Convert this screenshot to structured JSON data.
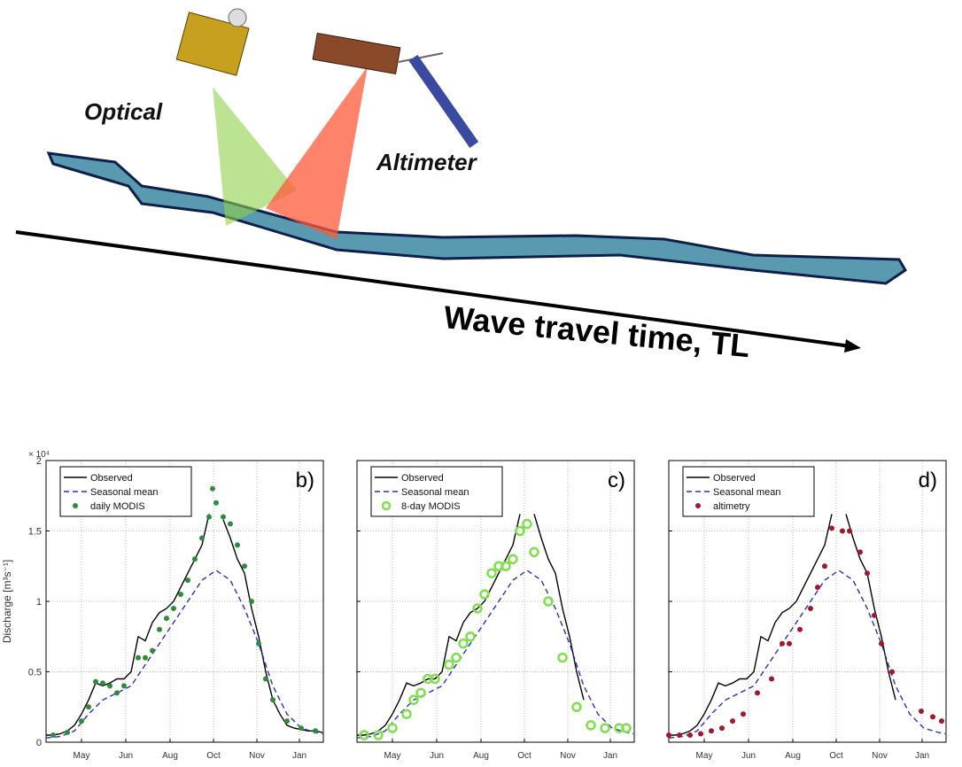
{
  "diagram": {
    "labels": {
      "optical": "Optical",
      "altimeter": "Altimeter",
      "wave": "Wave travel time, TL"
    }
  },
  "chart_data": [
    {
      "type": "line",
      "panel_label": "b)",
      "y_label": "Discharge [m³s⁻¹]",
      "y_multiplier": "× 10⁴",
      "show_ytick_labels": true,
      "xlim": [
        0,
        313
      ],
      "ylim": [
        0,
        2
      ],
      "yticks": [
        0,
        0.5,
        1,
        1.5,
        2
      ],
      "xticks": [
        {
          "value": 40,
          "label": "May"
        },
        {
          "value": 90,
          "label": "Jun"
        },
        {
          "value": 140,
          "label": "Aug"
        },
        {
          "value": 189,
          "label": "Oct"
        },
        {
          "value": 238,
          "label": "Nov"
        },
        {
          "value": 286,
          "label": "Jan"
        }
      ],
      "grid": true,
      "legend": "upper left",
      "series": [
        {
          "name": "Observed",
          "color": "#000000",
          "style": "solid",
          "x": [
            0,
            8,
            16,
            24,
            32,
            40,
            48,
            56,
            64,
            72,
            80,
            88,
            96,
            104,
            112,
            120,
            128,
            136,
            144,
            152,
            160,
            168,
            176,
            184,
            192,
            200,
            208,
            216,
            224,
            232,
            240,
            248,
            256,
            264,
            272,
            280,
            288,
            296,
            304,
            312
          ],
          "values": [
            0.05,
            0.05,
            0.06,
            0.08,
            0.12,
            0.2,
            0.3,
            0.42,
            0.4,
            0.42,
            0.45,
            0.45,
            0.5,
            0.75,
            0.72,
            0.85,
            0.92,
            0.95,
            1.0,
            1.1,
            1.2,
            1.3,
            1.4,
            1.62,
            null,
            1.58,
            1.45,
            1.3,
            1.2,
            0.95,
            0.75,
            0.5,
            0.3,
            0.2,
            0.12,
            0.1,
            0.09,
            0.08,
            0.08,
            0.07
          ]
        },
        {
          "name": "Seasonal mean",
          "color": "#2b2bd0",
          "style": "dashed",
          "x": [
            0,
            16,
            32,
            48,
            64,
            80,
            96,
            112,
            128,
            144,
            160,
            176,
            192,
            208,
            224,
            240,
            256,
            272,
            288,
            304,
            312
          ],
          "values": [
            0.03,
            0.04,
            0.08,
            0.2,
            0.3,
            0.35,
            0.4,
            0.55,
            0.7,
            0.85,
            1.0,
            1.15,
            1.22,
            1.15,
            0.95,
            0.7,
            0.4,
            0.2,
            0.1,
            0.07,
            0.06
          ]
        },
        {
          "name": "daily MODIS",
          "color": "#2e8b3a",
          "style": "points",
          "x": [
            8,
            24,
            40,
            48,
            56,
            64,
            72,
            80,
            88,
            104,
            112,
            120,
            128,
            136,
            144,
            152,
            160,
            168,
            176,
            184,
            188,
            192,
            200,
            208,
            216,
            224,
            232,
            240,
            248,
            256,
            272,
            288,
            304
          ],
          "values": [
            0.05,
            0.07,
            0.15,
            0.25,
            0.43,
            0.42,
            0.4,
            0.35,
            0.4,
            0.6,
            0.6,
            0.65,
            0.8,
            0.88,
            0.95,
            1.05,
            1.15,
            1.3,
            1.45,
            1.6,
            1.8,
            1.7,
            1.6,
            1.55,
            1.4,
            1.25,
            1.0,
            0.7,
            0.45,
            0.3,
            0.15,
            0.1,
            0.08
          ]
        }
      ]
    },
    {
      "type": "line",
      "panel_label": "c)",
      "show_ytick_labels": false,
      "xlim": [
        0,
        313
      ],
      "ylim": [
        0,
        2
      ],
      "yticks": [
        0,
        0.5,
        1,
        1.5,
        2
      ],
      "xticks": [
        {
          "value": 40,
          "label": "May"
        },
        {
          "value": 90,
          "label": "Jun"
        },
        {
          "value": 140,
          "label": "Aug"
        },
        {
          "value": 189,
          "label": "Oct"
        },
        {
          "value": 238,
          "label": "Nov"
        },
        {
          "value": 286,
          "label": "Jan"
        }
      ],
      "grid": true,
      "legend": "upper left",
      "series": [
        {
          "name": "Observed",
          "color": "#000000",
          "style": "solid",
          "x": [
            0,
            8,
            16,
            24,
            32,
            40,
            48,
            56,
            64,
            72,
            80,
            88,
            96,
            104,
            112,
            120,
            128,
            136,
            144,
            152,
            160,
            168,
            176,
            184,
            192,
            200,
            208,
            216,
            224,
            232,
            240,
            248,
            256
          ],
          "values": [
            0.05,
            0.05,
            0.06,
            0.08,
            0.12,
            0.2,
            0.3,
            0.42,
            0.4,
            0.42,
            0.45,
            0.45,
            0.5,
            0.75,
            0.72,
            0.85,
            0.92,
            0.95,
            1.0,
            1.1,
            1.2,
            1.3,
            1.4,
            1.62,
            null,
            1.62,
            1.45,
            1.3,
            1.2,
            0.95,
            0.75,
            0.5,
            0.3
          ]
        },
        {
          "name": "Seasonal mean",
          "color": "#2b2bd0",
          "style": "dashed",
          "x": [
            0,
            16,
            32,
            48,
            64,
            80,
            96,
            112,
            128,
            144,
            160,
            176,
            192,
            208,
            224,
            240,
            256,
            272,
            288,
            304,
            312
          ],
          "values": [
            0.03,
            0.04,
            0.08,
            0.2,
            0.3,
            0.35,
            0.4,
            0.55,
            0.7,
            0.85,
            1.0,
            1.15,
            1.22,
            1.15,
            0.95,
            0.7,
            0.4,
            0.2,
            0.1,
            0.07,
            0.06
          ]
        },
        {
          "name": "8-day MODIS",
          "color": "#7ee04a",
          "style": "circles",
          "x": [
            8,
            24,
            40,
            56,
            64,
            72,
            80,
            88,
            104,
            112,
            120,
            128,
            136,
            144,
            152,
            160,
            168,
            176,
            184,
            192,
            200,
            216,
            232,
            248,
            264,
            280,
            296,
            304
          ],
          "values": [
            0.05,
            0.05,
            0.1,
            0.2,
            0.3,
            0.35,
            0.45,
            0.45,
            0.55,
            0.6,
            0.7,
            0.75,
            0.95,
            1.05,
            1.2,
            1.25,
            1.25,
            1.3,
            1.5,
            1.55,
            1.35,
            1.0,
            0.6,
            0.25,
            0.12,
            0.1,
            0.1,
            0.1
          ]
        }
      ]
    },
    {
      "type": "line",
      "panel_label": "d)",
      "show_ytick_labels": false,
      "xlim": [
        0,
        313
      ],
      "ylim": [
        0,
        2
      ],
      "yticks": [
        0,
        0.5,
        1,
        1.5,
        2
      ],
      "xticks": [
        {
          "value": 40,
          "label": "May"
        },
        {
          "value": 90,
          "label": "Jun"
        },
        {
          "value": 140,
          "label": "Aug"
        },
        {
          "value": 189,
          "label": "Oct"
        },
        {
          "value": 238,
          "label": "Nov"
        },
        {
          "value": 286,
          "label": "Jan"
        }
      ],
      "grid": true,
      "legend": "upper left",
      "series": [
        {
          "name": "Observed",
          "color": "#000000",
          "style": "solid",
          "x": [
            0,
            8,
            16,
            24,
            32,
            40,
            48,
            56,
            64,
            72,
            80,
            88,
            96,
            104,
            112,
            120,
            128,
            136,
            144,
            152,
            160,
            168,
            176,
            184,
            192,
            200,
            208,
            216,
            224,
            232,
            240,
            248,
            256
          ],
          "values": [
            0.05,
            0.05,
            0.06,
            0.08,
            0.12,
            0.2,
            0.3,
            0.42,
            0.4,
            0.42,
            0.45,
            0.45,
            0.5,
            0.75,
            0.72,
            0.85,
            0.92,
            0.95,
            1.0,
            1.1,
            1.2,
            1.3,
            1.4,
            1.62,
            null,
            1.62,
            1.45,
            1.3,
            1.2,
            0.95,
            0.75,
            0.5,
            0.3
          ]
        },
        {
          "name": "Seasonal mean",
          "color": "#2b2bd0",
          "style": "dashed",
          "x": [
            0,
            16,
            32,
            48,
            64,
            80,
            96,
            112,
            128,
            144,
            160,
            176,
            192,
            208,
            224,
            240,
            256,
            272,
            288,
            304,
            312
          ],
          "values": [
            0.03,
            0.04,
            0.08,
            0.2,
            0.3,
            0.35,
            0.4,
            0.55,
            0.7,
            0.85,
            1.0,
            1.15,
            1.22,
            1.15,
            0.95,
            0.7,
            0.4,
            0.2,
            0.1,
            0.07,
            0.06
          ]
        },
        {
          "name": "altimetry",
          "color": "#a0182a",
          "style": "points",
          "x": [
            0,
            12,
            24,
            36,
            48,
            60,
            72,
            84,
            100,
            116,
            128,
            136,
            148,
            160,
            168,
            176,
            184,
            196,
            204,
            216,
            224,
            232,
            240,
            252,
            285,
            298,
            308
          ],
          "values": [
            0.05,
            0.05,
            0.05,
            0.06,
            0.08,
            0.1,
            0.15,
            0.2,
            0.35,
            0.45,
            0.7,
            0.7,
            0.8,
            0.95,
            1.1,
            1.25,
            1.52,
            1.5,
            1.5,
            1.35,
            1.2,
            0.9,
            0.7,
            0.5,
            0.22,
            0.18,
            0.15
          ]
        }
      ]
    }
  ]
}
